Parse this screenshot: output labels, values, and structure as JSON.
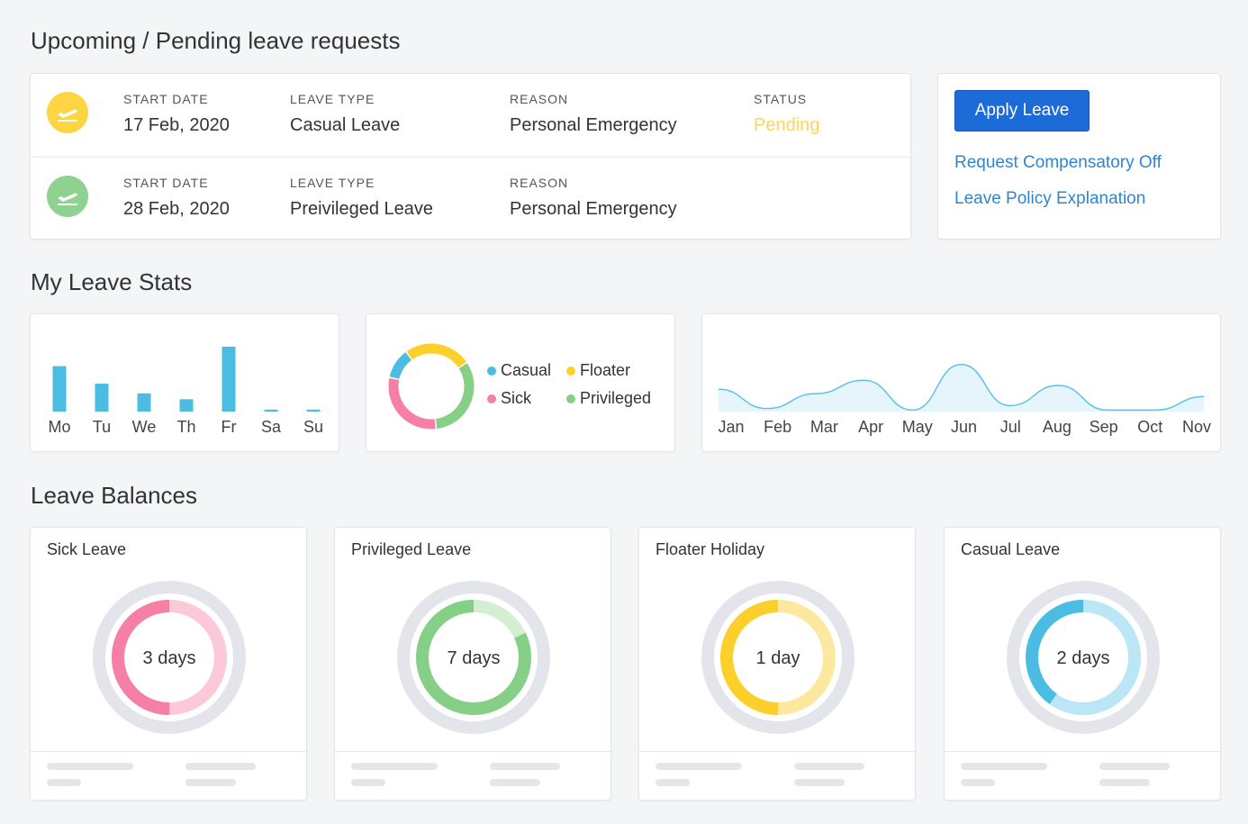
{
  "sections": {
    "requests_title": "Upcoming / Pending leave requests",
    "stats_title": "My Leave Stats",
    "balances_title": "Leave Balances"
  },
  "requests": [
    {
      "icon": "plane-departure-icon",
      "icon_color": "#fdd442",
      "start_label": "START DATE",
      "start_value": "17 Feb, 2020",
      "type_label": "LEAVE TYPE",
      "type_value": "Casual Leave",
      "reason_label": "REASON",
      "reason_value": "Personal Emergency",
      "status_label": "STATUS",
      "status_value": "Pending"
    },
    {
      "icon": "plane-departure-icon",
      "icon_color": "#8fd18f",
      "start_label": "START DATE",
      "start_value": "28 Feb, 2020",
      "type_label": "LEAVE TYPE",
      "type_value": "Preivileged Leave",
      "reason_label": "REASON",
      "reason_value": "Personal Emergency"
    }
  ],
  "actions": {
    "apply_label": "Apply Leave",
    "comp_off_label": "Request Compensatory Off",
    "policy_label": "Leave Policy Explanation"
  },
  "colors": {
    "casual": "#4bbde3",
    "floater": "#fdcf2a",
    "sick": "#f57fa5",
    "privileged": "#86cf86",
    "accent": "#1d6bd6",
    "link": "#2f86d0"
  },
  "chart_data": [
    {
      "type": "bar",
      "categories": [
        "Mo",
        "Tu",
        "We",
        "Th",
        "Fr",
        "Sa",
        "Su"
      ],
      "values": [
        7,
        4.3,
        2.8,
        1.9,
        10,
        0.3,
        0.3
      ],
      "ylim": [
        0,
        10
      ]
    },
    {
      "type": "pie",
      "labels": [
        "Casual",
        "Floater",
        "Sick",
        "Privileged"
      ],
      "values": [
        10,
        22,
        26,
        28
      ],
      "legend": "right"
    },
    {
      "type": "area",
      "categories": [
        "Jan",
        "Feb",
        "Mar",
        "Apr",
        "May",
        "Jun",
        "Jul",
        "Aug",
        "Sep",
        "Oct",
        "Nov"
      ],
      "values": [
        3,
        0.4,
        2.4,
        4.2,
        0.2,
        6.3,
        0.8,
        3.5,
        0.2,
        0.2,
        2
      ]
    }
  ],
  "balances": [
    {
      "title": "Sick Leave",
      "value": "3 days",
      "fraction": 0.5,
      "color": "#f57fa5",
      "light": "#fcc9d9"
    },
    {
      "title": "Privileged Leave",
      "value": "7 days",
      "fraction": 0.82,
      "color": "#86cf86",
      "light": "#d4eed2"
    },
    {
      "title": "Floater Holiday",
      "value": "1 day",
      "fraction": 0.5,
      "color": "#fdcf2a",
      "light": "#fde8a0"
    },
    {
      "title": "Casual Leave",
      "value": "2 days",
      "fraction": 0.4,
      "color": "#4bbde3",
      "light": "#bbe6f5"
    }
  ]
}
